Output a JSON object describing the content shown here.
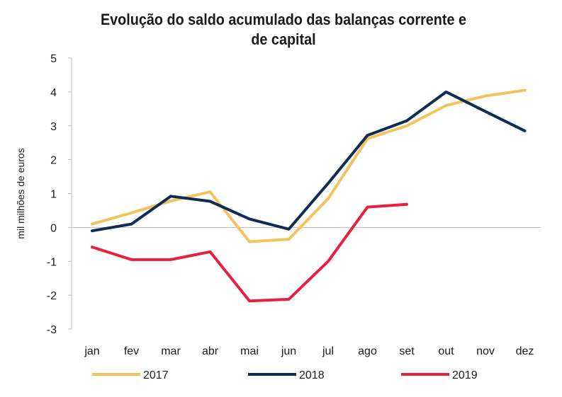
{
  "chart_data": {
    "type": "line",
    "title": "Evolução do saldo acumulado das balanças corrente e de capital",
    "xlabel": "",
    "ylabel": "mil milhões de euros",
    "categories": [
      "jan",
      "fev",
      "mar",
      "abr",
      "mai",
      "jun",
      "jul",
      "ago",
      "set",
      "out",
      "nov",
      "dez"
    ],
    "yticks": [
      "-3",
      "-2",
      "-1",
      "0",
      "1",
      "2",
      "3",
      "4",
      "5"
    ],
    "ylim": [
      -3,
      5
    ],
    "grid": false,
    "legend_position": "bottom",
    "series": [
      {
        "name": "2017",
        "color": "#f2c45f",
        "values": [
          0.1,
          0.43,
          0.78,
          1.05,
          -0.42,
          -0.35,
          0.85,
          2.62,
          3.0,
          3.6,
          3.88,
          4.05
        ]
      },
      {
        "name": "2018",
        "color": "#0f2d52",
        "values": [
          -0.1,
          0.1,
          0.92,
          0.77,
          0.25,
          -0.05,
          1.3,
          2.72,
          3.15,
          4.0,
          3.42,
          2.85
        ]
      },
      {
        "name": "2019",
        "color": "#e8203f",
        "values": [
          -0.58,
          -0.95,
          -0.95,
          -0.72,
          -2.17,
          -2.12,
          -1.0,
          0.6,
          0.68,
          null,
          null,
          null
        ]
      }
    ]
  }
}
